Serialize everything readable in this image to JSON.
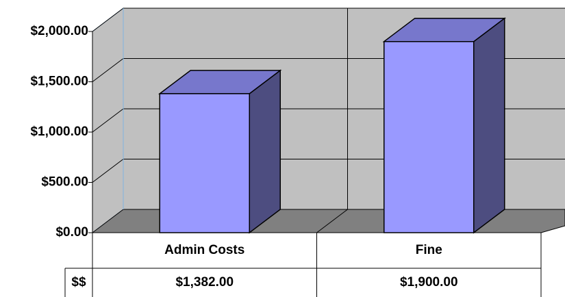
{
  "chart_data": {
    "type": "bar3d",
    "categories": [
      "Admin Costs",
      "Fine"
    ],
    "series": [
      {
        "name": "$$",
        "color": "#9999ff",
        "values": [
          1382,
          1900
        ],
        "value_labels": [
          "$1,382.00",
          "$1,900.00"
        ]
      }
    ],
    "ylim": [
      0,
      2000
    ],
    "yticks": [
      {
        "value": 0,
        "label": "$0.00"
      },
      {
        "value": 500,
        "label": "$500.00"
      },
      {
        "value": 1000,
        "label": "$1,000.00"
      },
      {
        "value": 1500,
        "label": "$1,500.00"
      },
      {
        "value": 2000,
        "label": "$2,000.00"
      }
    ],
    "grid": true
  }
}
